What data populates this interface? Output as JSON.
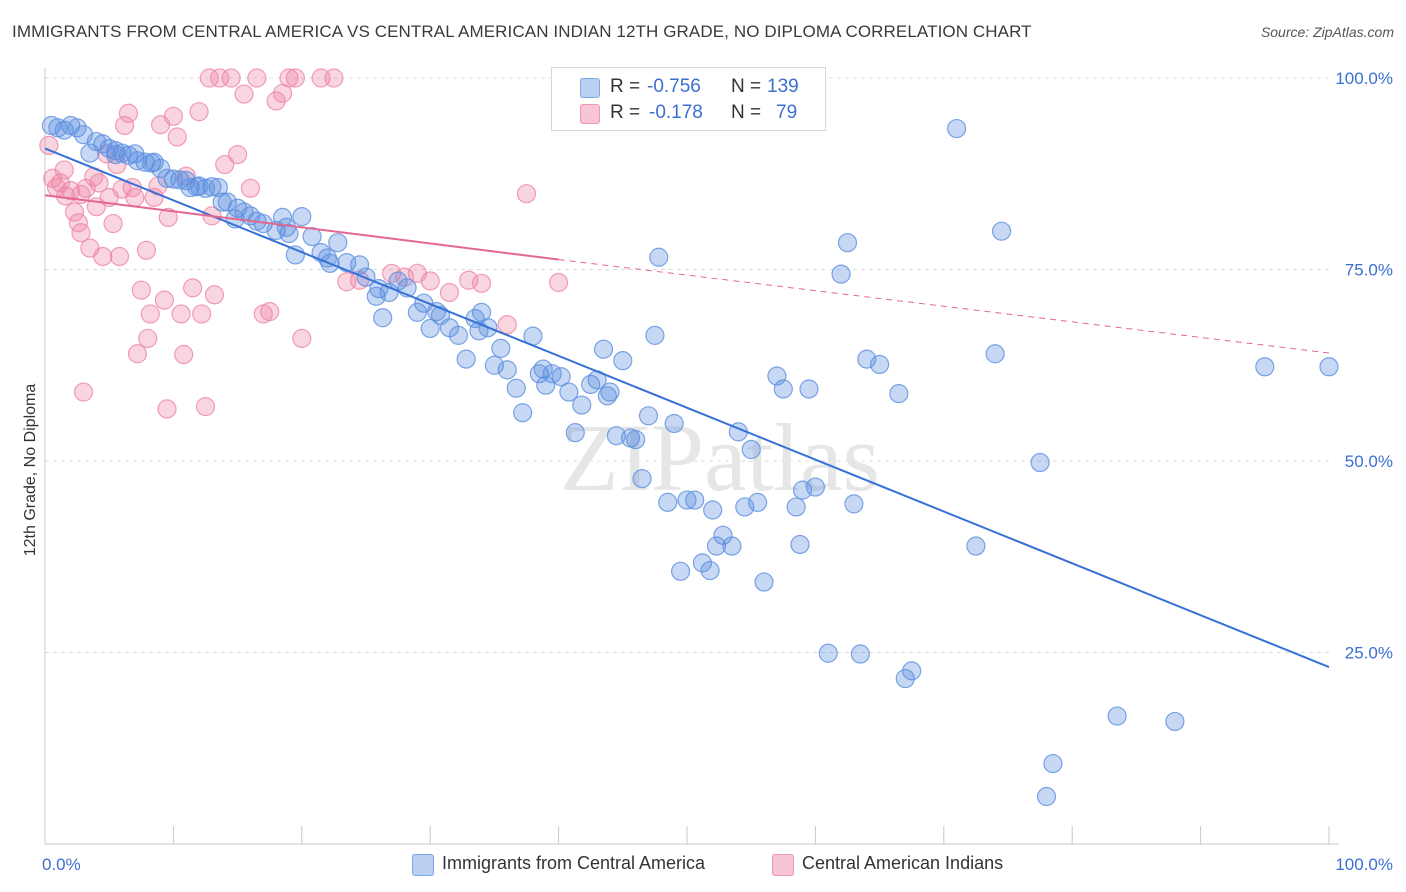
{
  "title": "IMMIGRANTS FROM CENTRAL AMERICA VS CENTRAL AMERICAN INDIAN 12TH GRADE, NO DIPLOMA CORRELATION CHART",
  "source": "Source: ZipAtlas.com",
  "watermark": "ZIPatlas",
  "legend": {
    "r_label": "R =",
    "n_label": "N =",
    "series": [
      {
        "r": "-0.756",
        "n": "139"
      },
      {
        "r": "-0.178",
        "n": "79"
      }
    ]
  },
  "bottom_legend": [
    "Immigrants from Central America",
    "Central American Indians"
  ],
  "chart_data": {
    "type": "scatter",
    "title": "IMMIGRANTS FROM CENTRAL AMERICA VS CENTRAL AMERICAN INDIAN 12TH GRADE, NO DIPLOMA CORRELATION CHART",
    "xlabel": "",
    "ylabel": "12th Grade, No Diploma",
    "xlim": [
      0,
      100
    ],
    "ylim": [
      0,
      100
    ],
    "x_tick_labels": [
      "0.0%",
      "100.0%"
    ],
    "y_tick_labels": [
      "100.0%",
      "75.0%",
      "50.0%",
      "25.0%"
    ],
    "y_ticks": [
      100,
      75,
      50,
      25
    ],
    "grid": true,
    "colors": {
      "blue": "#5b8fe0",
      "blue_line": "#3672d6",
      "pink": "#ef86a6",
      "pink_line": "#e4678f",
      "tick_text": "#3b6fd1"
    },
    "series": [
      {
        "name": "Immigrants from Central America",
        "r": -0.756,
        "n": 139,
        "trend": {
          "x": [
            0,
            100
          ],
          "y": [
            90.8,
            23.1
          ]
        },
        "points": [
          [
            0.5,
            93.8
          ],
          [
            1.5,
            93.2
          ],
          [
            2.0,
            93.8
          ],
          [
            2.5,
            93.5
          ],
          [
            3.0,
            92.6
          ],
          [
            3.5,
            90.2
          ],
          [
            4.0,
            91.7
          ],
          [
            4.5,
            91.4
          ],
          [
            5.0,
            90.8
          ],
          [
            5.5,
            90.0
          ],
          [
            6.0,
            90.2
          ],
          [
            6.5,
            89.9
          ],
          [
            7.0,
            90.1
          ],
          [
            7.2,
            89.2
          ],
          [
            7.8,
            89.0
          ],
          [
            8.3,
            88.9
          ],
          [
            9.0,
            88.2
          ],
          [
            9.5,
            86.9
          ],
          [
            10.0,
            86.8
          ],
          [
            10.5,
            86.7
          ],
          [
            11.0,
            86.6
          ],
          [
            11.3,
            85.7
          ],
          [
            12.0,
            85.9
          ],
          [
            12.5,
            85.6
          ],
          [
            13.0,
            85.8
          ],
          [
            13.5,
            85.7
          ],
          [
            13.8,
            83.8
          ],
          [
            14.2,
            83.8
          ],
          [
            14.8,
            81.6
          ],
          [
            15.5,
            82.5
          ],
          [
            16.0,
            82.0
          ],
          [
            16.5,
            81.3
          ],
          [
            17.0,
            81.0
          ],
          [
            18.0,
            80.1
          ],
          [
            18.5,
            81.8
          ],
          [
            19.0,
            79.7
          ],
          [
            19.5,
            76.9
          ],
          [
            20.0,
            81.9
          ],
          [
            20.8,
            79.3
          ],
          [
            21.5,
            77.2
          ],
          [
            22.2,
            75.8
          ],
          [
            22.8,
            78.5
          ],
          [
            23.5,
            75.9
          ],
          [
            24.5,
            75.6
          ],
          [
            25.0,
            74.0
          ],
          [
            25.8,
            71.5
          ],
          [
            26.3,
            68.7
          ],
          [
            26.8,
            72.0
          ],
          [
            27.5,
            73.5
          ],
          [
            28.2,
            72.6
          ],
          [
            29.0,
            69.4
          ],
          [
            29.5,
            70.6
          ],
          [
            30.0,
            67.3
          ],
          [
            30.8,
            69.0
          ],
          [
            31.5,
            67.4
          ],
          [
            32.2,
            66.4
          ],
          [
            32.8,
            63.3
          ],
          [
            33.5,
            68.6
          ],
          [
            34.0,
            69.4
          ],
          [
            34.5,
            67.4
          ],
          [
            35.0,
            62.5
          ],
          [
            35.5,
            64.7
          ],
          [
            36.0,
            61.9
          ],
          [
            36.7,
            59.5
          ],
          [
            37.2,
            56.3
          ],
          [
            38.0,
            66.3
          ],
          [
            38.5,
            61.4
          ],
          [
            39.0,
            59.9
          ],
          [
            39.5,
            61.4
          ],
          [
            40.2,
            61.0
          ],
          [
            40.8,
            59.0
          ],
          [
            41.3,
            53.7
          ],
          [
            41.8,
            57.3
          ],
          [
            42.5,
            60.0
          ],
          [
            43.0,
            60.6
          ],
          [
            43.5,
            64.6
          ],
          [
            44.0,
            59.0
          ],
          [
            44.5,
            53.3
          ],
          [
            45.0,
            63.1
          ],
          [
            45.6,
            53.0
          ],
          [
            46.0,
            52.8
          ],
          [
            46.5,
            47.7
          ],
          [
            47.0,
            55.9
          ],
          [
            47.5,
            66.4
          ],
          [
            47.8,
            76.6
          ],
          [
            48.5,
            44.6
          ],
          [
            49.0,
            54.9
          ],
          [
            49.5,
            35.6
          ],
          [
            50.0,
            44.9
          ],
          [
            50.6,
            44.9
          ],
          [
            51.2,
            36.7
          ],
          [
            51.8,
            35.7
          ],
          [
            52.3,
            38.9
          ],
          [
            52.8,
            40.3
          ],
          [
            53.5,
            38.9
          ],
          [
            54.5,
            44.0
          ],
          [
            55.0,
            51.5
          ],
          [
            55.5,
            44.6
          ],
          [
            56.0,
            34.2
          ],
          [
            57.0,
            61.1
          ],
          [
            57.5,
            59.4
          ],
          [
            58.5,
            44.0
          ],
          [
            58.8,
            39.1
          ],
          [
            59.5,
            59.4
          ],
          [
            60.0,
            46.6
          ],
          [
            61.0,
            24.9
          ],
          [
            62.0,
            74.4
          ],
          [
            62.5,
            78.5
          ],
          [
            63.0,
            44.4
          ],
          [
            63.5,
            24.8
          ],
          [
            64.0,
            63.3
          ],
          [
            65.0,
            62.6
          ],
          [
            66.5,
            58.8
          ],
          [
            67.0,
            21.6
          ],
          [
            67.5,
            22.6
          ],
          [
            71.0,
            93.4
          ],
          [
            72.5,
            38.9
          ],
          [
            74.0,
            64.0
          ],
          [
            74.5,
            80.0
          ],
          [
            77.5,
            49.8
          ],
          [
            78.0,
            6.2
          ],
          [
            78.5,
            10.5
          ],
          [
            83.5,
            16.7
          ],
          [
            88.0,
            16.0
          ],
          [
            95.0,
            62.3
          ],
          [
            100.0,
            62.3
          ],
          [
            1.0,
            93.5
          ],
          [
            5.5,
            90.5
          ],
          [
            8.5,
            89.0
          ],
          [
            11.8,
            85.8
          ],
          [
            15.0,
            83.0
          ],
          [
            18.8,
            80.5
          ],
          [
            22.0,
            76.5
          ],
          [
            26.0,
            72.5
          ],
          [
            30.5,
            69.5
          ],
          [
            33.8,
            67.0
          ],
          [
            38.8,
            62.0
          ],
          [
            43.8,
            58.5
          ],
          [
            54.0,
            53.8
          ],
          [
            59.0,
            46.2
          ],
          [
            52.0,
            43.6
          ]
        ]
      },
      {
        "name": "Central American Indians",
        "r": -0.178,
        "n": 79,
        "trend": {
          "x": [
            0,
            40
          ],
          "y": [
            84.7,
            76.3
          ]
        },
        "trend_dashed": {
          "x": [
            40,
            100
          ],
          "y": [
            76.3,
            64.1
          ]
        },
        "points": [
          [
            0.3,
            91.2
          ],
          [
            0.6,
            86.9
          ],
          [
            0.9,
            85.7
          ],
          [
            1.2,
            86.3
          ],
          [
            1.6,
            84.6
          ],
          [
            2.0,
            85.3
          ],
          [
            2.3,
            82.5
          ],
          [
            2.6,
            81.1
          ],
          [
            2.8,
            79.8
          ],
          [
            3.2,
            85.6
          ],
          [
            3.5,
            77.8
          ],
          [
            3.8,
            87.1
          ],
          [
            4.2,
            86.3
          ],
          [
            4.5,
            76.7
          ],
          [
            4.8,
            90.1
          ],
          [
            5.0,
            84.4
          ],
          [
            5.3,
            81.0
          ],
          [
            5.6,
            88.7
          ],
          [
            5.8,
            76.7
          ],
          [
            6.2,
            93.8
          ],
          [
            6.5,
            95.4
          ],
          [
            6.8,
            85.7
          ],
          [
            7.0,
            84.4
          ],
          [
            7.5,
            72.3
          ],
          [
            7.9,
            77.5
          ],
          [
            8.2,
            69.2
          ],
          [
            8.5,
            84.4
          ],
          [
            8.8,
            85.9
          ],
          [
            9.0,
            93.9
          ],
          [
            9.3,
            71.0
          ],
          [
            9.6,
            81.8
          ],
          [
            10.0,
            95.0
          ],
          [
            10.3,
            92.3
          ],
          [
            10.6,
            69.2
          ],
          [
            11.0,
            87.2
          ],
          [
            11.5,
            72.6
          ],
          [
            12.0,
            95.6
          ],
          [
            12.5,
            57.1
          ],
          [
            12.8,
            100.0
          ],
          [
            13.2,
            71.7
          ],
          [
            13.6,
            100.0
          ],
          [
            14.0,
            88.7
          ],
          [
            14.5,
            100.0
          ],
          [
            15.0,
            90.0
          ],
          [
            15.5,
            97.9
          ],
          [
            16.0,
            85.6
          ],
          [
            16.5,
            100.0
          ],
          [
            17.0,
            69.2
          ],
          [
            17.5,
            69.5
          ],
          [
            18.0,
            97.0
          ],
          [
            18.5,
            98.0
          ],
          [
            19.0,
            100.0
          ],
          [
            19.5,
            100.0
          ],
          [
            20.0,
            66.0
          ],
          [
            21.5,
            100.0
          ],
          [
            22.5,
            100.0
          ],
          [
            23.5,
            73.4
          ],
          [
            24.5,
            73.6
          ],
          [
            27.0,
            74.5
          ],
          [
            28.0,
            74.0
          ],
          [
            29.0,
            74.5
          ],
          [
            30.0,
            73.5
          ],
          [
            31.5,
            72.0
          ],
          [
            33.0,
            73.6
          ],
          [
            34.0,
            73.2
          ],
          [
            36.0,
            67.8
          ],
          [
            37.5,
            84.9
          ],
          [
            40.0,
            73.3
          ],
          [
            1.5,
            88.0
          ],
          [
            2.8,
            84.8
          ],
          [
            4.0,
            83.2
          ],
          [
            6.0,
            85.5
          ],
          [
            7.2,
            64.0
          ],
          [
            8.0,
            66.0
          ],
          [
            9.5,
            56.8
          ],
          [
            10.8,
            63.9
          ],
          [
            12.2,
            69.2
          ],
          [
            3.0,
            59.0
          ],
          [
            13.0,
            82.0
          ]
        ]
      }
    ]
  }
}
